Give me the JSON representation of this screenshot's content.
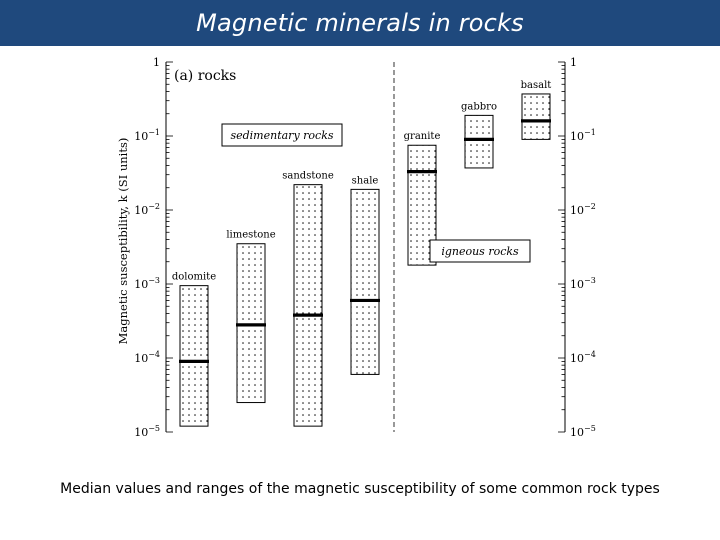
{
  "slide": {
    "title": "Magnetic minerals in rocks",
    "caption": "Median values and ranges of the magnetic susceptibility  of some common rock types"
  },
  "chart_data": {
    "type": "range-bar",
    "panel_label": "(a)  rocks",
    "ylabel": "Magnetic susceptibility, k  (SI units)",
    "yscale": "log",
    "ylim": [
      1e-05,
      1
    ],
    "y_ticks": [
      {
        "value": 1,
        "base": "1",
        "exp": ""
      },
      {
        "value": 0.1,
        "base": "10",
        "exp": "−1"
      },
      {
        "value": 0.01,
        "base": "10",
        "exp": "−2"
      },
      {
        "value": 0.001,
        "base": "10",
        "exp": "−3"
      },
      {
        "value": 0.0001,
        "base": "10",
        "exp": "−4"
      },
      {
        "value": 1e-05,
        "base": "10",
        "exp": "−5"
      }
    ],
    "groups": [
      {
        "name": "sedimentary rocks",
        "rocks": [
          "dolomite",
          "limestone",
          "sandstone",
          "shale"
        ]
      },
      {
        "name": "igneous rocks",
        "rocks": [
          "granite",
          "gabbro",
          "basalt"
        ]
      }
    ],
    "series": [
      {
        "name": "dolomite",
        "min": 1.2e-05,
        "max": 0.00095,
        "median": 9e-05
      },
      {
        "name": "limestone",
        "min": 2.5e-05,
        "max": 0.0035,
        "median": 0.00028
      },
      {
        "name": "sandstone",
        "min": 1.2e-05,
        "max": 0.022,
        "median": 0.00038
      },
      {
        "name": "shale",
        "min": 6e-05,
        "max": 0.019,
        "median": 0.0006
      },
      {
        "name": "granite",
        "min": 0.0018,
        "max": 0.075,
        "median": 0.033
      },
      {
        "name": "gabbro",
        "min": 0.037,
        "max": 0.19,
        "median": 0.09
      },
      {
        "name": "basalt",
        "min": 0.09,
        "max": 0.37,
        "median": 0.16
      }
    ]
  }
}
